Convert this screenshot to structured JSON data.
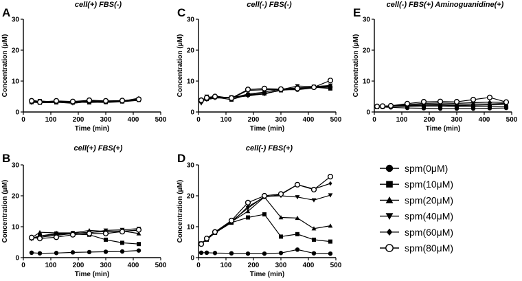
{
  "chart_data": [
    {
      "panel": "A",
      "type": "line",
      "title": "cell(+) FBS(-)",
      "xlabel": "Time (min)",
      "ylabel": "Concentration (μM)",
      "xlim": [
        0,
        500
      ],
      "ylim": [
        0,
        30
      ],
      "x_ticks": [
        0,
        100,
        200,
        300,
        400,
        500
      ],
      "y_ticks": [
        0,
        10,
        20,
        30
      ],
      "x": [
        30,
        60,
        120,
        180,
        240,
        300,
        360,
        420
      ],
      "series": [
        {
          "name": "spm(0μM)",
          "values": [
            3.8,
            3.4,
            3.5,
            3.3,
            3.6,
            3.4,
            3.6,
            4.0
          ]
        },
        {
          "name": "spm(10μM)",
          "values": [
            3.2,
            3.0,
            3.1,
            3.2,
            3.1,
            3.2,
            3.4,
            3.9
          ]
        },
        {
          "name": "spm(20μM)",
          "values": [
            3.5,
            3.1,
            3.3,
            3.0,
            3.5,
            3.3,
            3.5,
            4.5
          ]
        },
        {
          "name": "spm(40μM)",
          "values": [
            3.4,
            3.6,
            3.2,
            2.8,
            3.4,
            3.5,
            3.4,
            4.2
          ]
        },
        {
          "name": "spm(60μM)",
          "values": [
            3.0,
            3.3,
            3.4,
            3.2,
            3.2,
            3.1,
            3.3,
            3.8
          ]
        },
        {
          "name": "spm(80μM)",
          "values": [
            3.6,
            3.2,
            3.6,
            3.4,
            3.8,
            3.6,
            3.7,
            4.1
          ]
        }
      ]
    },
    {
      "panel": "B",
      "type": "line",
      "title": "cell(+) FBS(+)",
      "xlabel": "Time (min)",
      "ylabel": "Concentration (μM)",
      "xlim": [
        0,
        500
      ],
      "ylim": [
        0,
        30
      ],
      "x_ticks": [
        0,
        100,
        200,
        300,
        400,
        500
      ],
      "y_ticks": [
        0,
        10,
        20,
        30
      ],
      "x": [
        30,
        60,
        120,
        180,
        240,
        300,
        360,
        420
      ],
      "series": [
        {
          "name": "spm(0μM)",
          "values": [
            1.6,
            1.4,
            1.5,
            1.7,
            1.8,
            1.9,
            2.0,
            2.3
          ]
        },
        {
          "name": "spm(10μM)",
          "values": [
            6.3,
            7.0,
            7.8,
            7.6,
            7.4,
            5.8,
            4.8,
            4.4
          ]
        },
        {
          "name": "spm(20μM)",
          "values": [
            6.4,
            8.2,
            8.0,
            8.0,
            8.8,
            8.5,
            8.6,
            7.8
          ]
        },
        {
          "name": "spm(40μM)",
          "values": [
            6.0,
            7.0,
            7.5,
            8.0,
            8.0,
            8.8,
            9.0,
            9.4
          ]
        },
        {
          "name": "spm(60μM)",
          "values": [
            6.2,
            6.6,
            7.2,
            7.8,
            8.2,
            8.4,
            8.6,
            8.8
          ]
        },
        {
          "name": "spm(80μM)",
          "values": [
            6.5,
            6.2,
            6.6,
            7.4,
            7.8,
            7.8,
            8.4,
            9.0
          ]
        }
      ]
    },
    {
      "panel": "C",
      "type": "line",
      "title": "cell(-) FBS(-)",
      "xlabel": "Time (min)",
      "ylabel": "Concentration (μM)",
      "xlim": [
        0,
        500
      ],
      "ylim": [
        0,
        30
      ],
      "x_ticks": [
        0,
        100,
        200,
        300,
        400,
        500
      ],
      "y_ticks": [
        0,
        10,
        20,
        30
      ],
      "x": [
        10,
        30,
        60,
        120,
        180,
        240,
        300,
        360,
        420,
        480
      ],
      "series": [
        {
          "name": "spm(0μM)",
          "values": [
            4.0,
            4.5,
            5.2,
            4.4,
            7.0,
            7.2,
            7.2,
            7.2,
            7.8,
            8.2
          ]
        },
        {
          "name": "spm(10μM)",
          "values": [
            3.5,
            4.2,
            4.8,
            4.0,
            5.6,
            6.0,
            7.0,
            7.6,
            8.0,
            7.6
          ]
        },
        {
          "name": "spm(20μM)",
          "values": [
            4.0,
            4.4,
            5.0,
            4.5,
            5.8,
            6.4,
            7.4,
            7.8,
            8.0,
            8.4
          ]
        },
        {
          "name": "spm(40μM)",
          "values": [
            2.8,
            5.0,
            4.6,
            4.8,
            5.4,
            5.8,
            7.2,
            8.4,
            8.2,
            8.6
          ]
        },
        {
          "name": "spm(60μM)",
          "values": [
            3.6,
            4.0,
            4.5,
            4.6,
            5.2,
            5.9,
            7.0,
            7.5,
            7.9,
            8.0
          ]
        },
        {
          "name": "spm(80μM)",
          "values": [
            3.8,
            4.6,
            5.0,
            4.5,
            7.3,
            7.6,
            7.4,
            7.6,
            8.0,
            10.2
          ]
        }
      ]
    },
    {
      "panel": "D",
      "type": "line",
      "title": "cell(-) FBS(+)",
      "xlabel": "Time (min)",
      "ylabel": "Concentration (μM)",
      "xlim": [
        0,
        500
      ],
      "ylim": [
        0,
        30
      ],
      "x_ticks": [
        0,
        100,
        200,
        300,
        400,
        500
      ],
      "y_ticks": [
        0,
        10,
        20,
        30
      ],
      "x": [
        10,
        30,
        60,
        120,
        180,
        240,
        300,
        360,
        420,
        480
      ],
      "series": [
        {
          "name": "spm(0μM)",
          "values": [
            1.6,
            1.6,
            1.5,
            1.4,
            1.3,
            1.3,
            1.5,
            2.6,
            1.4,
            1.3
          ]
        },
        {
          "name": "spm(10μM)",
          "values": [
            4.6,
            5.8,
            8.0,
            11.3,
            13.0,
            14.0,
            6.8,
            7.6,
            5.8,
            5.2
          ]
        },
        {
          "name": "spm(20μM)",
          "values": [
            4.6,
            6.0,
            8.0,
            11.6,
            15.0,
            19.6,
            13.0,
            12.8,
            9.4,
            10.3
          ]
        },
        {
          "name": "spm(40μM)",
          "values": [
            4.4,
            6.0,
            8.2,
            11.8,
            16.0,
            19.8,
            20.0,
            19.6,
            18.6,
            20.2
          ]
        },
        {
          "name": "spm(60μM)",
          "values": [
            4.4,
            6.2,
            8.0,
            11.4,
            16.5,
            19.6,
            20.4,
            23.6,
            22.2,
            24.0
          ]
        },
        {
          "name": "spm(80μM)",
          "values": [
            4.4,
            6.2,
            8.3,
            12.0,
            17.8,
            20.0,
            20.6,
            23.6,
            22.0,
            26.2
          ]
        }
      ]
    },
    {
      "panel": "E",
      "type": "line",
      "title": "cell(-) FBS(+) Aminoguanidine(+)",
      "xlabel": "Time (min)",
      "ylabel": "Concentration (μM)",
      "xlim": [
        0,
        500
      ],
      "ylim": [
        0,
        30
      ],
      "x_ticks": [
        0,
        100,
        200,
        300,
        400,
        500
      ],
      "y_ticks": [
        0,
        10,
        20,
        30
      ],
      "x": [
        10,
        30,
        60,
        120,
        180,
        240,
        300,
        360,
        420,
        480
      ],
      "series": [
        {
          "name": "spm(0μM)",
          "values": [
            1.6,
            1.6,
            1.5,
            1.3,
            1.2,
            1.1,
            1.1,
            1.1,
            1.2,
            1.3
          ]
        },
        {
          "name": "spm(10μM)",
          "values": [
            1.6,
            1.7,
            1.8,
            1.8,
            1.9,
            1.9,
            1.8,
            1.8,
            1.8,
            1.7
          ]
        },
        {
          "name": "spm(20μM)",
          "values": [
            1.7,
            1.8,
            1.8,
            2.0,
            2.2,
            2.2,
            2.1,
            2.2,
            2.3,
            2.4
          ]
        },
        {
          "name": "spm(40μM)",
          "values": [
            1.7,
            1.8,
            1.9,
            2.2,
            2.4,
            2.5,
            2.4,
            2.6,
            2.6,
            2.8
          ]
        },
        {
          "name": "spm(60μM)",
          "values": [
            1.8,
            1.8,
            2.0,
            2.4,
            2.8,
            2.9,
            2.8,
            3.0,
            3.2,
            3.1
          ]
        },
        {
          "name": "spm(80μM)",
          "values": [
            1.8,
            1.9,
            2.0,
            2.7,
            3.3,
            3.4,
            3.3,
            4.0,
            4.7,
            3.2
          ]
        }
      ]
    }
  ],
  "legend": [
    {
      "label": "spm(0μM)",
      "marker": "circle-filled"
    },
    {
      "label": "spm(10μM)",
      "marker": "square-filled"
    },
    {
      "label": "spm(20μM)",
      "marker": "triangle-up-filled"
    },
    {
      "label": "spm(40μM)",
      "marker": "triangle-down-filled"
    },
    {
      "label": "spm(60μM)",
      "marker": "diamond-filled"
    },
    {
      "label": "spm(80μM)",
      "marker": "circle-open"
    }
  ]
}
